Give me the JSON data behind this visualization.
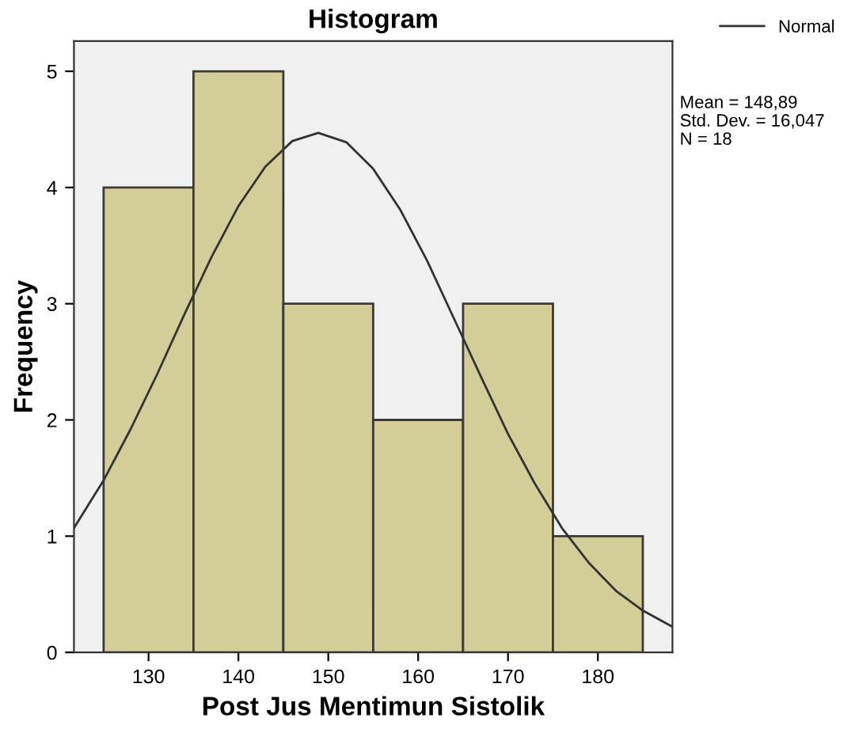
{
  "chart_data": {
    "type": "histogram",
    "title": "Histogram",
    "xlabel": "Post Jus Mentimun Sistolik",
    "ylabel": "Frequency",
    "bins": [
      125,
      135,
      145,
      155,
      165,
      175,
      185
    ],
    "series": [
      {
        "type": "histogram",
        "color": "#d3ce97",
        "values": [
          4,
          5,
          3,
          2,
          3,
          1
        ]
      },
      {
        "type": "line",
        "name": "Normal",
        "color": "#333333",
        "x": [
          121.7,
          125,
          128,
          131,
          134,
          137,
          140,
          143,
          146,
          148.89,
          152,
          155,
          158,
          161,
          164,
          167,
          170,
          173,
          176,
          179,
          182,
          185,
          188.3
        ],
        "values": [
          1.07,
          1.48,
          1.92,
          2.4,
          2.91,
          3.4,
          3.84,
          4.18,
          4.4,
          4.47,
          4.39,
          4.16,
          3.81,
          3.37,
          2.87,
          2.37,
          1.88,
          1.45,
          1.07,
          0.77,
          0.53,
          0.36,
          0.22
        ]
      }
    ],
    "xlim": [
      121.7,
      188.3
    ],
    "ylim": [
      0,
      5.26
    ],
    "xticks": [
      130,
      140,
      150,
      160,
      170,
      180
    ],
    "yticks": [
      0,
      1,
      2,
      3,
      4,
      5
    ],
    "annotations": [
      "Mean = 148,89",
      "Std. Dev. = 16,047",
      "N = 18"
    ],
    "legend": "top right",
    "grid": false,
    "line_style": "solid",
    "marker": "none"
  }
}
